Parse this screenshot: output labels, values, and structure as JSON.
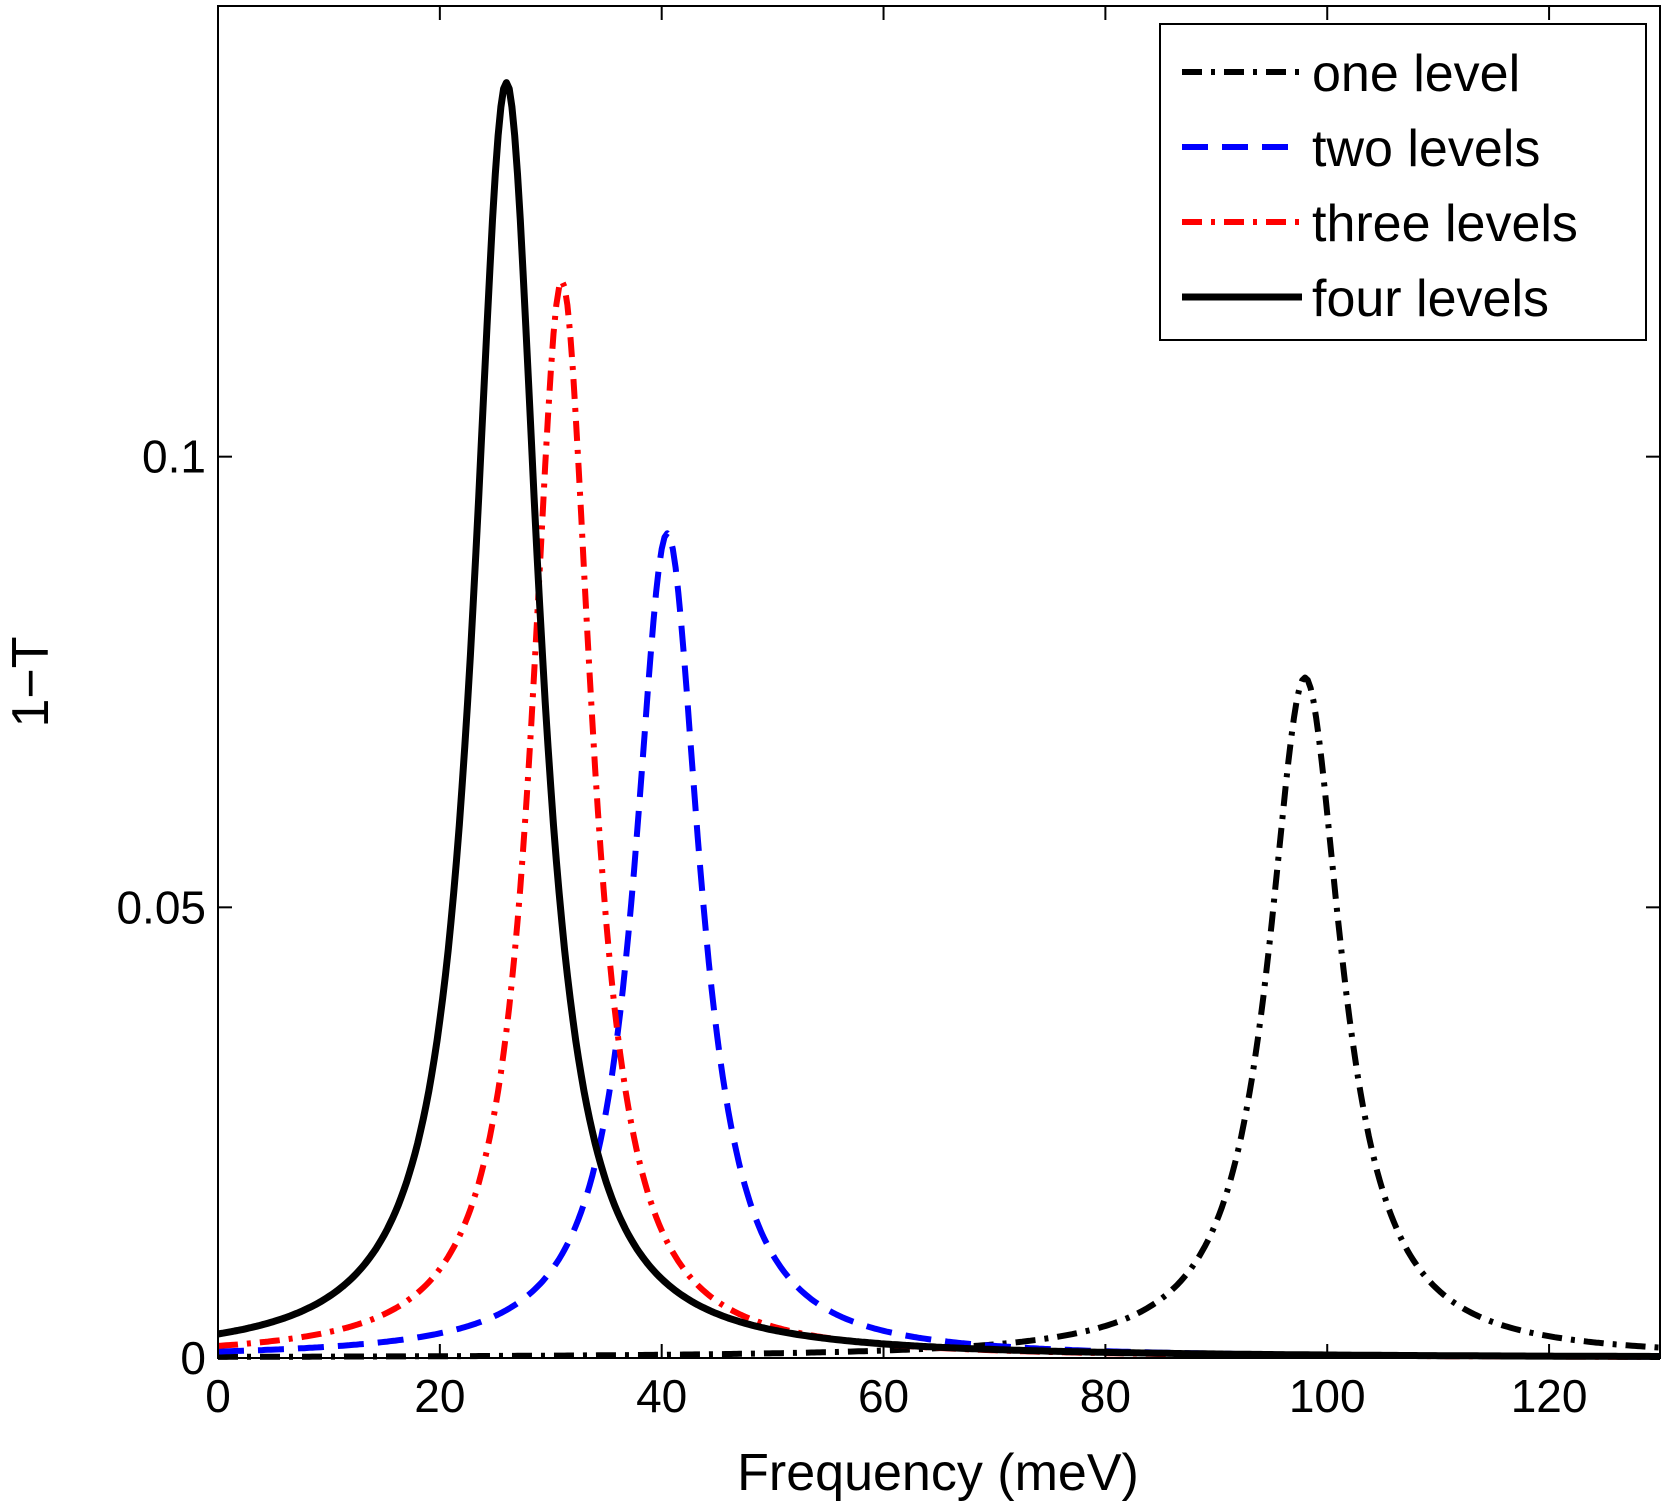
{
  "chart_data": {
    "type": "line",
    "title": "",
    "xlabel": "Frequency  (meV)",
    "ylabel": "1−T",
    "xlim": [
      0,
      130
    ],
    "ylim": [
      0,
      0.15
    ],
    "xticks": [
      0,
      20,
      40,
      60,
      80,
      100,
      120
    ],
    "xtick_labels": [
      "0",
      "20",
      "40",
      "60",
      "80",
      "100",
      "120"
    ],
    "yticks": [
      0,
      0.05,
      0.1
    ],
    "ytick_labels": [
      "0",
      "0.05",
      "0.1"
    ],
    "grid": false,
    "legend_position": "top-right",
    "series": [
      {
        "name": "one level",
        "color": "#000000",
        "style": "dashdot",
        "peak_x": 98.0,
        "peak_y": 0.0755,
        "hwhm": 4.0
      },
      {
        "name": "two levels",
        "color": "#0000ff",
        "style": "dashed",
        "peak_x": 40.5,
        "peak_y": 0.0915,
        "hwhm": 3.6
      },
      {
        "name": "three levels",
        "color": "#ff0000",
        "style": "dashdot",
        "peak_x": 31.0,
        "peak_y": 0.1195,
        "hwhm": 3.3
      },
      {
        "name": "four levels",
        "color": "#000000",
        "style": "solid",
        "peak_x": 26.0,
        "peak_y": 0.1415,
        "hwhm": 3.6
      }
    ]
  }
}
